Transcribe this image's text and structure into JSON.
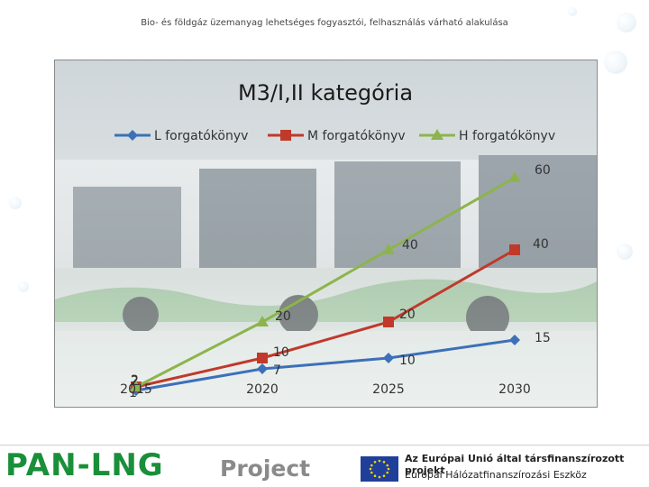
{
  "slide": {
    "title": "Bio- és földgáz üzemanyag lehetséges fogyasztói, felhasználás várható alakulása"
  },
  "chart_data": {
    "type": "line",
    "title": "M3/I,II kategória",
    "categories": [
      "2015",
      "2020",
      "2025",
      "2030"
    ],
    "ylim": [
      -5,
      75
    ],
    "grid": false,
    "legend": "top",
    "series": [
      {
        "name": "L forgatókönyv",
        "color": "#3c70b8",
        "marker": "diamond",
        "values": [
          1,
          7,
          10,
          15
        ],
        "labels": [
          "1",
          "7",
          "10",
          "15"
        ]
      },
      {
        "name": "M forgatókönyv",
        "color": "#c0392b",
        "marker": "square",
        "values": [
          2,
          10,
          20,
          40
        ],
        "labels": [
          "2",
          "10",
          "20",
          "40"
        ]
      },
      {
        "name": "H forgatókönyv",
        "color": "#8db44c",
        "marker": "triangle",
        "values": [
          2,
          20,
          40,
          60
        ],
        "labels": [
          "2",
          "20",
          "40",
          "60"
        ]
      }
    ]
  },
  "footer": {
    "logo_main": "PAN-LNG",
    "logo_sub": "Project",
    "eu_line1": "Az Európai Unió által társfinanszírozott projekt",
    "eu_line2": "Európai Hálózatfinanszírozási Eszköz"
  }
}
